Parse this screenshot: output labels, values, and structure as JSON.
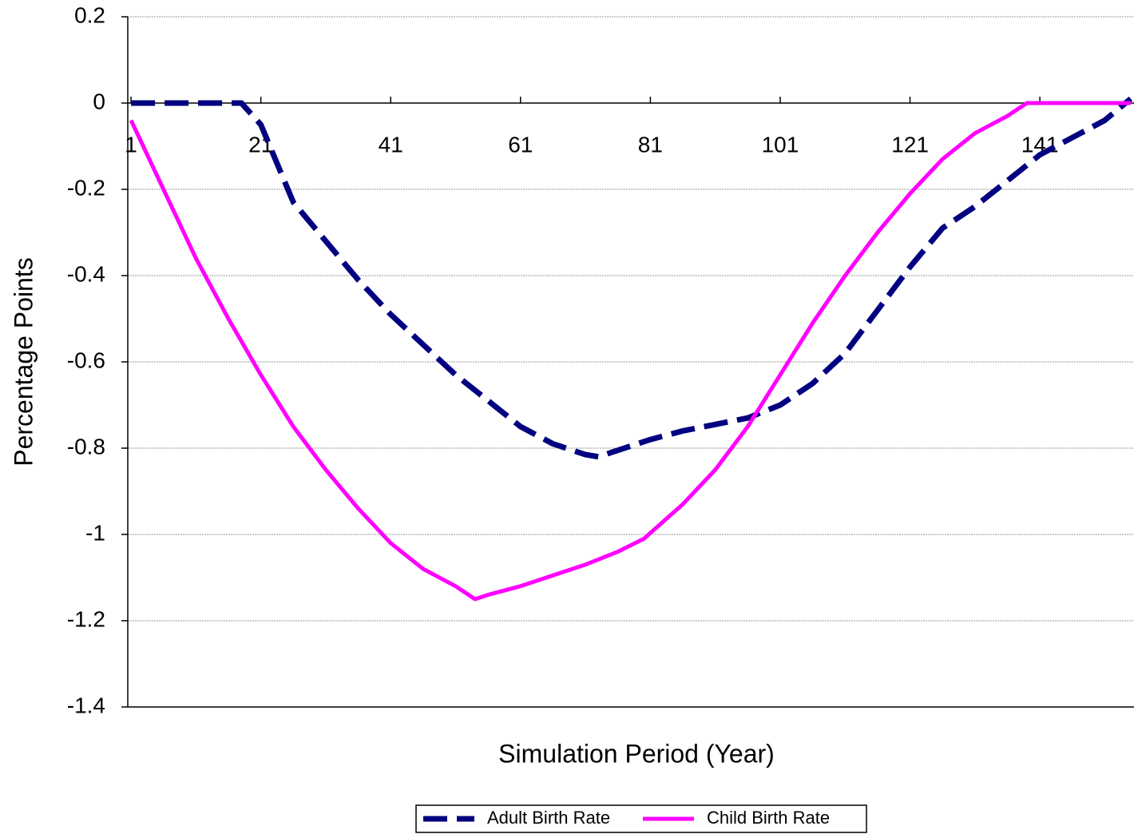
{
  "chart_data": {
    "type": "line",
    "x_label": "Simulation Period (Year)",
    "y_label": "Percentage Points",
    "xlim": [
      0.5,
      155.5
    ],
    "xticks": [
      1,
      21,
      41,
      61,
      81,
      101,
      121,
      141
    ],
    "ylim": [
      -1.4,
      0.2
    ],
    "yticks": [
      0.2,
      0,
      -0.2,
      -0.4,
      -0.6,
      -0.8,
      -1,
      -1.2,
      -1.4
    ],
    "grid": true,
    "legend": "bottom",
    "series": [
      {
        "name": "Adult Birth Rate",
        "color": "#000080",
        "dashed": true,
        "x": [
          1,
          18,
          21,
          26,
          31,
          36,
          41,
          46,
          51,
          56,
          61,
          66,
          71,
          73,
          76,
          81,
          86,
          91,
          96,
          101,
          106,
          111,
          116,
          121,
          126,
          131,
          136,
          141,
          146,
          151,
          155
        ],
        "values": [
          0,
          0,
          -0.05,
          -0.23,
          -0.32,
          -0.41,
          -0.49,
          -0.56,
          -0.63,
          -0.69,
          -0.75,
          -0.79,
          -0.815,
          -0.82,
          -0.805,
          -0.78,
          -0.76,
          -0.745,
          -0.73,
          -0.7,
          -0.65,
          -0.58,
          -0.48,
          -0.38,
          -0.29,
          -0.24,
          -0.18,
          -0.12,
          -0.08,
          -0.04,
          0.01
        ]
      },
      {
        "name": "Child Birth Rate",
        "color": "#ff00ff",
        "dashed": false,
        "x": [
          1,
          6,
          11,
          16,
          21,
          26,
          31,
          36,
          41,
          46,
          51,
          54,
          56,
          61,
          66,
          71,
          76,
          80,
          86,
          91,
          96,
          101,
          106,
          111,
          116,
          121,
          126,
          131,
          136,
          139,
          141,
          155
        ],
        "values": [
          -0.04,
          -0.2,
          -0.36,
          -0.5,
          -0.63,
          -0.75,
          -0.85,
          -0.94,
          -1.02,
          -1.08,
          -1.12,
          -1.15,
          -1.14,
          -1.12,
          -1.095,
          -1.07,
          -1.04,
          -1.01,
          -0.93,
          -0.85,
          -0.75,
          -0.63,
          -0.51,
          -0.4,
          -0.3,
          -0.21,
          -0.13,
          -0.07,
          -0.03,
          0,
          0,
          0
        ]
      }
    ]
  }
}
